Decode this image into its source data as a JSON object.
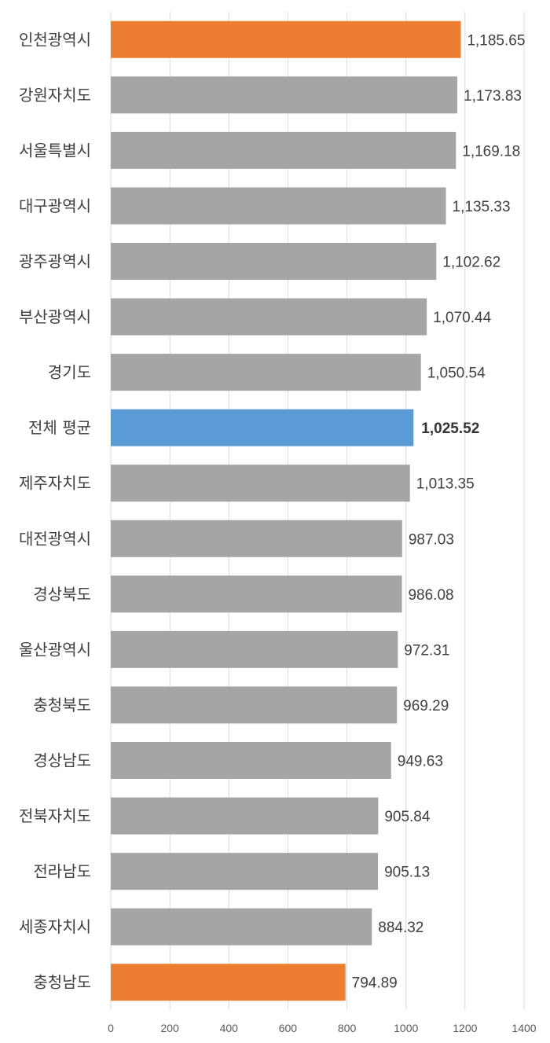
{
  "chart_data": {
    "type": "bar",
    "orientation": "horizontal",
    "categories": [
      "인천광역시",
      "강원자치도",
      "서울특별시",
      "대구광역시",
      "광주광역시",
      "부산광역시",
      "경기도",
      "전체 평균",
      "제주자치도",
      "대전광역시",
      "경상북도",
      "울산광역시",
      "충청북도",
      "경상남도",
      "전북자치도",
      "전라남도",
      "세종자치시",
      "충청남도"
    ],
    "values": [
      1185.65,
      1173.83,
      1169.18,
      1135.33,
      1102.62,
      1070.44,
      1050.54,
      1025.52,
      1013.35,
      987.03,
      986.08,
      972.31,
      969.29,
      949.63,
      905.84,
      905.13,
      884.32,
      794.89
    ],
    "value_labels": [
      "1,185.65",
      "1,173.83",
      "1,169.18",
      "1,135.33",
      "1,102.62",
      "1,070.44",
      "1,050.54",
      "1,025.52",
      "1,013.35",
      "987.03",
      "986.08",
      "972.31",
      "969.29",
      "949.63",
      "905.84",
      "905.13",
      "884.32",
      "794.89"
    ],
    "bar_colors": [
      "#ED7D31",
      "#A5A5A5",
      "#A5A5A5",
      "#A5A5A5",
      "#A5A5A5",
      "#A5A5A5",
      "#A5A5A5",
      "#5B9BD5",
      "#A5A5A5",
      "#A5A5A5",
      "#A5A5A5",
      "#A5A5A5",
      "#A5A5A5",
      "#A5A5A5",
      "#A5A5A5",
      "#A5A5A5",
      "#A5A5A5",
      "#ED7D31"
    ],
    "highlight_bold_index": 7,
    "xlim": [
      0,
      1400
    ],
    "x_ticks": [
      0,
      200,
      400,
      600,
      800,
      1000,
      1200,
      1400
    ],
    "x_tick_labels": [
      "0",
      "200",
      "400",
      "600",
      "800",
      "1000",
      "1200",
      "1400"
    ],
    "grid": true,
    "title": "",
    "xlabel": "",
    "ylabel": ""
  }
}
